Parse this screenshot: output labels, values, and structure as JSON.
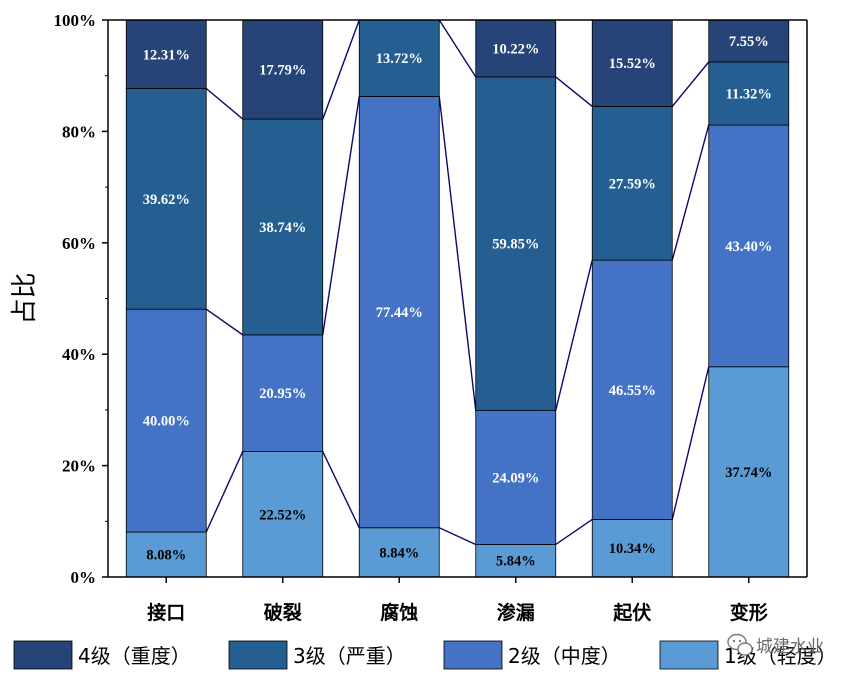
{
  "chart_data": {
    "type": "bar",
    "stacked": true,
    "categories": [
      "接口",
      "破裂",
      "腐蚀",
      "渗漏",
      "起伏",
      "变形"
    ],
    "series": [
      {
        "name": "1级（轻度）",
        "color": "#5B9BD5",
        "label_color": "#000000",
        "values": [
          8.08,
          22.52,
          8.84,
          5.84,
          10.34,
          37.74
        ],
        "labels": [
          "8.08%",
          "22.52%",
          "8.84%",
          "5.84%",
          "10.34%",
          "37.74%"
        ]
      },
      {
        "name": "2级（中度）",
        "color": "#4472C4",
        "label_color": "#ffffff",
        "values": [
          40.0,
          20.95,
          77.44,
          24.09,
          46.55,
          43.4
        ],
        "labels": [
          "40.00%",
          "20.95%",
          "77.44%",
          "24.09%",
          "46.55%",
          "43.40%"
        ]
      },
      {
        "name": "3级（严重）",
        "color": "#255E91",
        "label_color": "#ffffff",
        "values": [
          39.62,
          38.74,
          13.72,
          59.85,
          27.59,
          11.32
        ],
        "labels": [
          "39.62%",
          "38.74%",
          "13.72%",
          "59.85%",
          "27.59%",
          "11.32%"
        ]
      },
      {
        "name": "4级（重度）",
        "color": "#264478",
        "label_color": "#ffffff",
        "values": [
          12.31,
          17.79,
          0,
          10.22,
          15.52,
          7.55
        ],
        "labels": [
          "12.31%",
          "17.79%",
          "",
          "10.22%",
          "15.52%",
          "7.55%"
        ]
      }
    ],
    "ylabel": "占比",
    "xlabel": "",
    "ylim": [
      0,
      100
    ],
    "yticks": [
      "0%",
      "20%",
      "40%",
      "60%",
      "80%",
      "100%"
    ],
    "connector_lines": true,
    "connector_color": "#0A0A6E",
    "legend": {
      "position": "bottom",
      "order": [
        "4级（重度）",
        "3级（严重）",
        "2级（中度）",
        "1级（轻度）"
      ]
    },
    "grid": false
  },
  "watermark": {
    "icon": "wechat-icon",
    "text": "城建水业"
  }
}
